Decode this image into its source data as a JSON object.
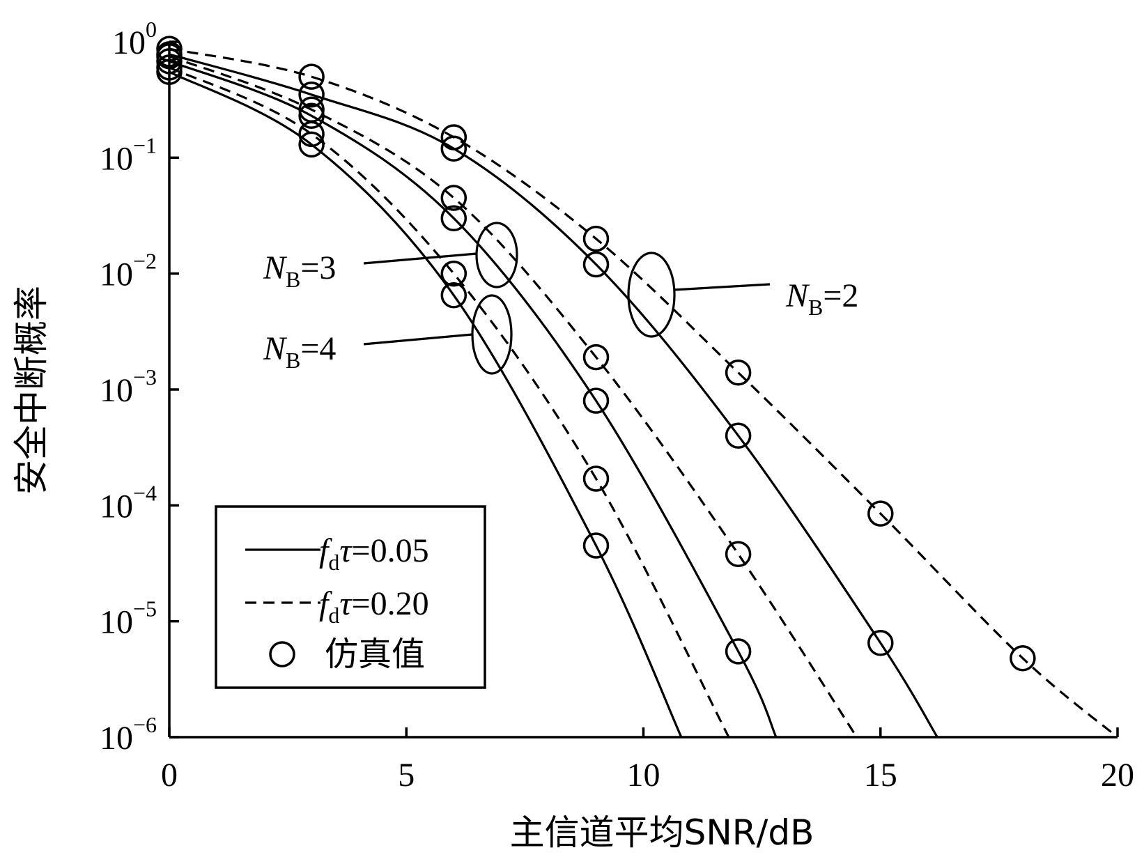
{
  "chart_data": {
    "type": "line",
    "xlabel": "主信道平均SNR/dB",
    "ylabel": "安全中断概率",
    "xlim": [
      0,
      20
    ],
    "ylim": [
      1e-06,
      1
    ],
    "yscale": "log",
    "x_ticks": [
      "0",
      "5",
      "10",
      "15",
      "20"
    ],
    "y_ticks": [
      {
        "base": "10",
        "exp": "0"
      },
      {
        "base": "10",
        "exp": "−1"
      },
      {
        "base": "10",
        "exp": "−2"
      },
      {
        "base": "10",
        "exp": "−3"
      },
      {
        "base": "10",
        "exp": "−4"
      },
      {
        "base": "10",
        "exp": "−5"
      },
      {
        "base": "10",
        "exp": "−6"
      }
    ],
    "legend": {
      "placement": "bottom-left",
      "entries": [
        {
          "style": "solid",
          "sym": "f",
          "sub": "d",
          "rest": "τ=0.05"
        },
        {
          "style": "dashed",
          "sym": "f",
          "sub": "d",
          "rest": "τ=0.20"
        },
        {
          "style": "marker",
          "label": "仿真值"
        }
      ]
    },
    "annotations": [
      {
        "n": "N",
        "sub": "B",
        "rest": "=2"
      },
      {
        "n": "N",
        "sub": "B",
        "rest": "=3"
      },
      {
        "n": "N",
        "sub": "B",
        "rest": "=4"
      }
    ],
    "series": [
      {
        "group": 0,
        "style": "solid",
        "x": [
          0,
          3,
          6,
          9,
          12,
          15,
          16.2
        ],
        "y": [
          0.78,
          0.35,
          0.12,
          0.012,
          0.0004,
          6.5e-06,
          1e-06
        ]
      },
      {
        "group": 0,
        "style": "dashed",
        "x": [
          0,
          3,
          6,
          9,
          12,
          15,
          18,
          20
        ],
        "y": [
          0.87,
          0.5,
          0.15,
          0.02,
          0.0014,
          8.5e-05,
          4.8e-06,
          1e-06
        ]
      },
      {
        "group": 1,
        "style": "solid",
        "x": [
          0,
          3,
          6,
          9,
          12,
          12.8
        ],
        "y": [
          0.68,
          0.23,
          0.03,
          0.0008,
          5.5e-06,
          1e-06
        ]
      },
      {
        "group": 1,
        "style": "dashed",
        "x": [
          0,
          3,
          6,
          9,
          12,
          14.5
        ],
        "y": [
          0.75,
          0.26,
          0.045,
          0.0019,
          3.8e-05,
          1e-06
        ]
      },
      {
        "group": 2,
        "style": "solid",
        "x": [
          0,
          3,
          6,
          9,
          10.8
        ],
        "y": [
          0.55,
          0.13,
          0.0065,
          4.5e-05,
          1e-06
        ]
      },
      {
        "group": 2,
        "style": "dashed",
        "x": [
          0,
          3,
          6,
          9,
          11.8
        ],
        "y": [
          0.6,
          0.16,
          0.01,
          0.00017,
          1e-06
        ]
      }
    ],
    "simulation_points": [
      {
        "x": 0,
        "y": 0.55
      },
      {
        "x": 0,
        "y": 0.6
      },
      {
        "x": 0,
        "y": 0.68
      },
      {
        "x": 0,
        "y": 0.75
      },
      {
        "x": 0,
        "y": 0.78
      },
      {
        "x": 0,
        "y": 0.87
      },
      {
        "x": 3,
        "y": 0.5
      },
      {
        "x": 3,
        "y": 0.35
      },
      {
        "x": 3,
        "y": 0.26
      },
      {
        "x": 3,
        "y": 0.23
      },
      {
        "x": 3,
        "y": 0.16
      },
      {
        "x": 3,
        "y": 0.13
      },
      {
        "x": 6,
        "y": 0.15
      },
      {
        "x": 6,
        "y": 0.12
      },
      {
        "x": 6,
        "y": 0.045
      },
      {
        "x": 6,
        "y": 0.03
      },
      {
        "x": 6,
        "y": 0.01
      },
      {
        "x": 6,
        "y": 0.0065
      },
      {
        "x": 9,
        "y": 0.02
      },
      {
        "x": 9,
        "y": 0.012
      },
      {
        "x": 9,
        "y": 0.0019
      },
      {
        "x": 9,
        "y": 0.0008
      },
      {
        "x": 9,
        "y": 0.00017
      },
      {
        "x": 9,
        "y": 4.5e-05
      },
      {
        "x": 12,
        "y": 0.0014
      },
      {
        "x": 12,
        "y": 0.0004
      },
      {
        "x": 12,
        "y": 3.8e-05
      },
      {
        "x": 12,
        "y": 5.5e-06
      },
      {
        "x": 15,
        "y": 8.5e-05
      },
      {
        "x": 15,
        "y": 6.5e-06
      },
      {
        "x": 18,
        "y": 4.8e-06
      }
    ]
  }
}
